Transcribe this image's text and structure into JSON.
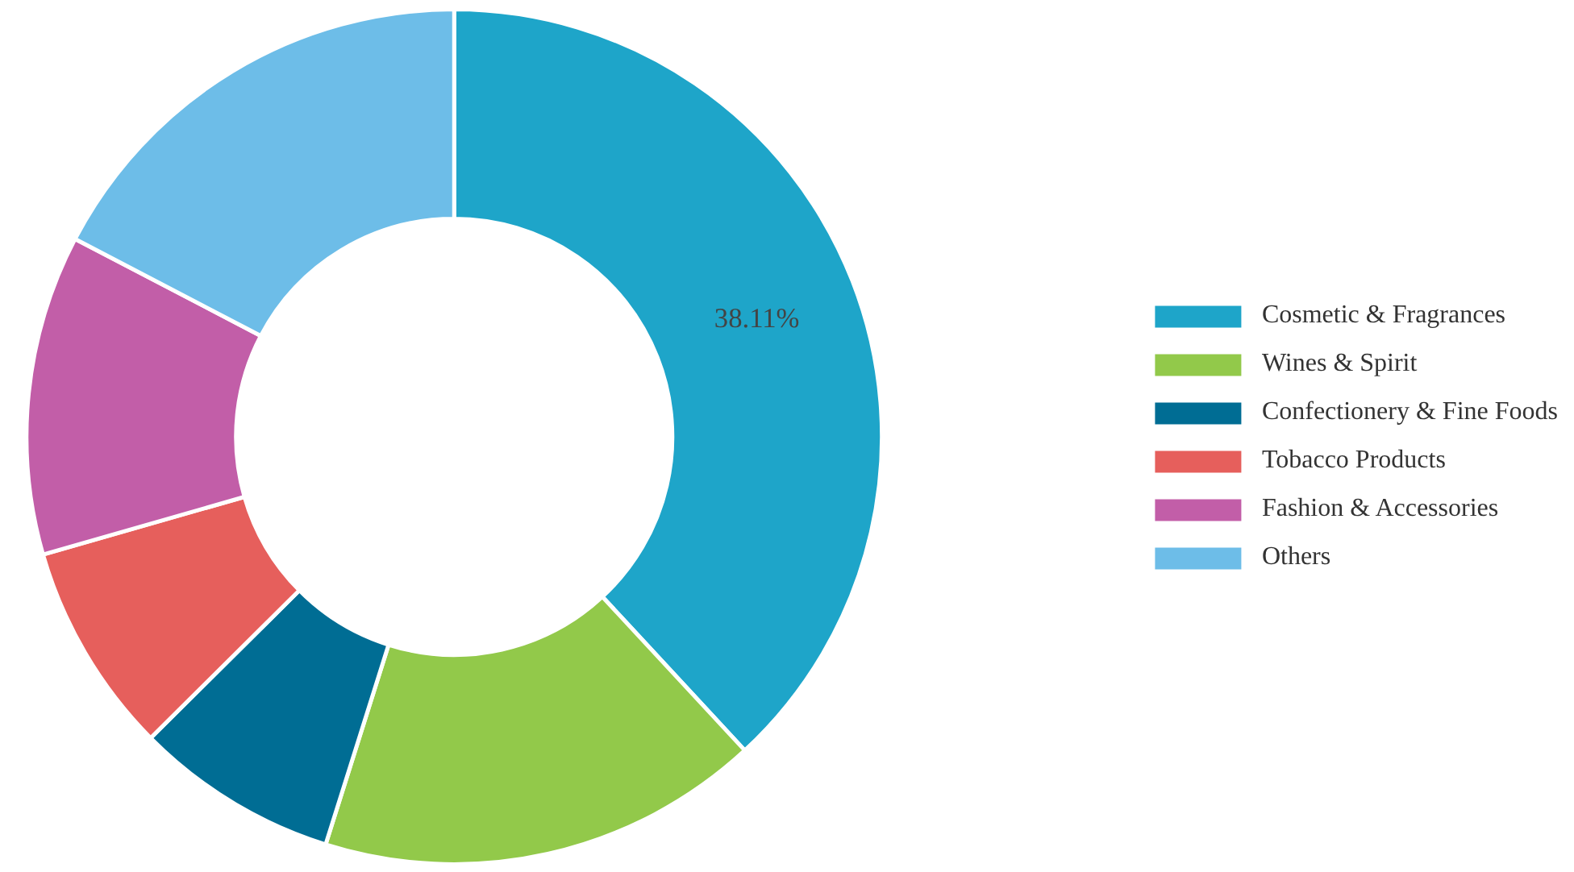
{
  "chart_data": {
    "type": "donut",
    "categories": [
      "Cosmetic & Fragrances",
      "Wines & Spirit",
      "Confectionery & Fine Foods",
      "Tobacco Products",
      "Fashion & Accessories",
      "Others"
    ],
    "values": [
      38.11,
      16.75,
      7.7,
      8.0,
      12.1,
      17.34
    ],
    "colors": [
      "#1ea5c9",
      "#92c94a",
      "#006d94",
      "#e65f5c",
      "#c25ea8",
      "#6dbde8"
    ],
    "value_labels": [
      "38.11%",
      null,
      null,
      null,
      null,
      null
    ],
    "legend": "right"
  }
}
